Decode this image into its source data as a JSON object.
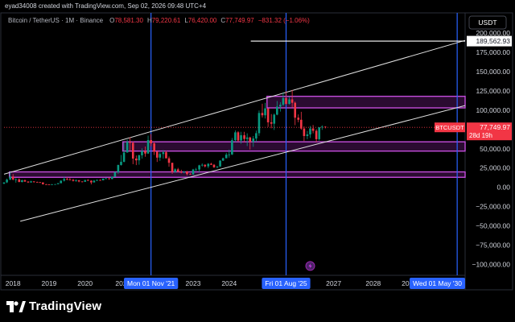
{
  "attribution": "eyad34008 created with TradingView.com, Sep 02, 2026 09:48 UTC+4",
  "header": {
    "symbol": "Bitcoin / TetherUS · 1M · Binance",
    "ohlc": [
      {
        "label": "O",
        "value": "78,581.30"
      },
      {
        "label": "H",
        "value": "79,220.61"
      },
      {
        "label": "L",
        "value": "76,420.00"
      },
      {
        "label": "C",
        "value": "77,749.97"
      }
    ],
    "change": "−831.32 (−1.06%)"
  },
  "currency_badge": "USDT",
  "brand": {
    "name": "TradingView"
  },
  "colors": {
    "background": "#000000",
    "up": "#089981",
    "down": "#f23645",
    "zone": "#9c27b0",
    "vline": "#2962ff",
    "channel": "#e0e0e0"
  },
  "chart_data": {
    "type": "candlestick",
    "interval": "1M",
    "x_axis": {
      "range": [
        2017.75,
        2030.55
      ],
      "ticks": [
        {
          "year": 2018,
          "label": "2018"
        },
        {
          "year": 2019,
          "label": "2019"
        },
        {
          "year": 2020,
          "label": "2020"
        },
        {
          "year": 2021,
          "label": "202"
        },
        {
          "year": 2023,
          "label": "2023"
        },
        {
          "year": 2024,
          "label": "2024"
        },
        {
          "year": 2025,
          "label": "2"
        },
        {
          "year": 2026.9,
          "label": "2027"
        },
        {
          "year": 2028,
          "label": "2028"
        },
        {
          "year": 2029,
          "label": "2029"
        }
      ],
      "highlighted_labels": [
        {
          "date": 2021.83,
          "label": "Mon 01 Nov '21"
        },
        {
          "date": 2025.58,
          "label": "Fri 01 Aug '25"
        },
        {
          "date": 2030.33,
          "label": "Wed 01 May '30"
        }
      ]
    },
    "y_axis": {
      "range": [
        -112000,
        222000
      ],
      "ticks": [
        {
          "value": 200000,
          "label": "200,000.00"
        },
        {
          "value": 175000,
          "label": "175,000.00"
        },
        {
          "value": 150000,
          "label": "150,000.00"
        },
        {
          "value": 125000,
          "label": "125,000.00"
        },
        {
          "value": 100000,
          "label": "100,000.00"
        },
        {
          "value": 75000,
          "label": "75,000.00"
        },
        {
          "value": 50000,
          "label": "50,000.00"
        },
        {
          "value": 25000,
          "label": "25,000.00"
        },
        {
          "value": 0,
          "label": "0.00"
        },
        {
          "value": -25000,
          "label": "−25,000.00"
        },
        {
          "value": -50000,
          "label": "−50,000.00"
        },
        {
          "value": -75000,
          "label": "−75,000.00"
        },
        {
          "value": -100000,
          "label": "−100,000.00"
        }
      ],
      "price_label": {
        "value": 77749.97,
        "symbol": "BTCUSDT",
        "price": "77,749.97",
        "countdown": "28d 19h"
      },
      "target_label": {
        "value": 189562.93,
        "text": "189,562.93"
      }
    },
    "candles": [
      {
        "t": 2017.75,
        "o": 4700,
        "h": 6500,
        "l": 4200,
        "c": 6400
      },
      {
        "t": 2017.83,
        "o": 6400,
        "h": 11300,
        "l": 5500,
        "c": 10000
      },
      {
        "t": 2017.92,
        "o": 10000,
        "h": 19800,
        "l": 9300,
        "c": 14000
      },
      {
        "t": 2018.0,
        "o": 14000,
        "h": 17200,
        "l": 9000,
        "c": 10200
      },
      {
        "t": 2018.08,
        "o": 10200,
        "h": 11800,
        "l": 6000,
        "c": 10300
      },
      {
        "t": 2018.17,
        "o": 10300,
        "h": 11700,
        "l": 6600,
        "c": 6900
      },
      {
        "t": 2018.25,
        "o": 6900,
        "h": 9800,
        "l": 6400,
        "c": 9200
      },
      {
        "t": 2018.33,
        "o": 9200,
        "h": 10000,
        "l": 7000,
        "c": 7500
      },
      {
        "t": 2018.42,
        "o": 7500,
        "h": 7800,
        "l": 5700,
        "c": 6400
      },
      {
        "t": 2018.5,
        "o": 6400,
        "h": 8500,
        "l": 6000,
        "c": 7700
      },
      {
        "t": 2018.58,
        "o": 7700,
        "h": 7800,
        "l": 5900,
        "c": 7000
      },
      {
        "t": 2018.67,
        "o": 7000,
        "h": 7400,
        "l": 6100,
        "c": 6600
      },
      {
        "t": 2018.75,
        "o": 6600,
        "h": 7000,
        "l": 6200,
        "c": 6300
      },
      {
        "t": 2018.83,
        "o": 6300,
        "h": 6500,
        "l": 3600,
        "c": 4000
      },
      {
        "t": 2018.92,
        "o": 4000,
        "h": 4300,
        "l": 3100,
        "c": 3700
      },
      {
        "t": 2019.0,
        "o": 3700,
        "h": 4100,
        "l": 3300,
        "c": 3400
      },
      {
        "t": 2019.08,
        "o": 3400,
        "h": 4200,
        "l": 3300,
        "c": 3800
      },
      {
        "t": 2019.17,
        "o": 3800,
        "h": 4100,
        "l": 3700,
        "c": 4100
      },
      {
        "t": 2019.25,
        "o": 4100,
        "h": 5600,
        "l": 4000,
        "c": 5300
      },
      {
        "t": 2019.33,
        "o": 5300,
        "h": 9000,
        "l": 5300,
        "c": 8600
      },
      {
        "t": 2019.42,
        "o": 8600,
        "h": 13900,
        "l": 7500,
        "c": 10800
      },
      {
        "t": 2019.5,
        "o": 10800,
        "h": 13200,
        "l": 9100,
        "c": 10100
      },
      {
        "t": 2019.58,
        "o": 10100,
        "h": 12300,
        "l": 9300,
        "c": 9600
      },
      {
        "t": 2019.67,
        "o": 9600,
        "h": 10900,
        "l": 7700,
        "c": 8300
      },
      {
        "t": 2019.75,
        "o": 8300,
        "h": 10400,
        "l": 7300,
        "c": 9100
      },
      {
        "t": 2019.83,
        "o": 9100,
        "h": 9500,
        "l": 6500,
        "c": 7600
      },
      {
        "t": 2019.92,
        "o": 7600,
        "h": 7800,
        "l": 6400,
        "c": 7200
      },
      {
        "t": 2020.0,
        "o": 7200,
        "h": 9600,
        "l": 6900,
        "c": 9400
      },
      {
        "t": 2020.08,
        "o": 9400,
        "h": 10500,
        "l": 8400,
        "c": 8500
      },
      {
        "t": 2020.17,
        "o": 8500,
        "h": 9200,
        "l": 3800,
        "c": 6400
      },
      {
        "t": 2020.25,
        "o": 6400,
        "h": 9500,
        "l": 6200,
        "c": 8600
      },
      {
        "t": 2020.33,
        "o": 8600,
        "h": 10100,
        "l": 8100,
        "c": 9400
      },
      {
        "t": 2020.42,
        "o": 9400,
        "h": 10400,
        "l": 8900,
        "c": 9100
      },
      {
        "t": 2020.5,
        "o": 9100,
        "h": 11400,
        "l": 8900,
        "c": 11300
      },
      {
        "t": 2020.58,
        "o": 11300,
        "h": 12500,
        "l": 11000,
        "c": 11600
      },
      {
        "t": 2020.67,
        "o": 11600,
        "h": 12000,
        "l": 9800,
        "c": 10800
      },
      {
        "t": 2020.75,
        "o": 10800,
        "h": 14100,
        "l": 10400,
        "c": 13800
      },
      {
        "t": 2020.83,
        "o": 13800,
        "h": 19900,
        "l": 13200,
        "c": 19700
      },
      {
        "t": 2020.92,
        "o": 19700,
        "h": 29300,
        "l": 17600,
        "c": 29000
      },
      {
        "t": 2021.0,
        "o": 29000,
        "h": 41900,
        "l": 28100,
        "c": 33100
      },
      {
        "t": 2021.08,
        "o": 33100,
        "h": 58300,
        "l": 32300,
        "c": 45100
      },
      {
        "t": 2021.17,
        "o": 45100,
        "h": 61800,
        "l": 45000,
        "c": 58800
      },
      {
        "t": 2021.25,
        "o": 58800,
        "h": 64900,
        "l": 46900,
        "c": 57700
      },
      {
        "t": 2021.33,
        "o": 57700,
        "h": 59600,
        "l": 30000,
        "c": 37300
      },
      {
        "t": 2021.42,
        "o": 37300,
        "h": 41300,
        "l": 28800,
        "c": 35000
      },
      {
        "t": 2021.5,
        "o": 35000,
        "h": 42400,
        "l": 29300,
        "c": 41500
      },
      {
        "t": 2021.58,
        "o": 41500,
        "h": 50500,
        "l": 37300,
        "c": 47100
      },
      {
        "t": 2021.67,
        "o": 47100,
        "h": 52900,
        "l": 39600,
        "c": 43800
      },
      {
        "t": 2021.75,
        "o": 43800,
        "h": 67000,
        "l": 43300,
        "c": 61300
      },
      {
        "t": 2021.83,
        "o": 61300,
        "h": 69000,
        "l": 53200,
        "c": 57000
      },
      {
        "t": 2021.92,
        "o": 57000,
        "h": 59000,
        "l": 42000,
        "c": 46200
      },
      {
        "t": 2022.0,
        "o": 46200,
        "h": 47900,
        "l": 32900,
        "c": 38500
      },
      {
        "t": 2022.08,
        "o": 38500,
        "h": 45800,
        "l": 34300,
        "c": 43200
      },
      {
        "t": 2022.17,
        "o": 43200,
        "h": 48200,
        "l": 37200,
        "c": 45500
      },
      {
        "t": 2022.25,
        "o": 45500,
        "h": 47400,
        "l": 37600,
        "c": 37600
      },
      {
        "t": 2022.33,
        "o": 37600,
        "h": 40000,
        "l": 26700,
        "c": 31800
      },
      {
        "t": 2022.42,
        "o": 31800,
        "h": 31900,
        "l": 17600,
        "c": 19900
      },
      {
        "t": 2022.5,
        "o": 19900,
        "h": 24700,
        "l": 18800,
        "c": 23300
      },
      {
        "t": 2022.58,
        "o": 23300,
        "h": 25200,
        "l": 19500,
        "c": 20000
      },
      {
        "t": 2022.67,
        "o": 20000,
        "h": 22800,
        "l": 18100,
        "c": 19400
      },
      {
        "t": 2022.75,
        "o": 19400,
        "h": 20900,
        "l": 18200,
        "c": 20500
      },
      {
        "t": 2022.83,
        "o": 20500,
        "h": 21400,
        "l": 15500,
        "c": 17200
      },
      {
        "t": 2022.92,
        "o": 17200,
        "h": 18400,
        "l": 16300,
        "c": 16500
      },
      {
        "t": 2023.0,
        "o": 16500,
        "h": 23900,
        "l": 16500,
        "c": 23100
      },
      {
        "t": 2023.08,
        "o": 23100,
        "h": 25200,
        "l": 21400,
        "c": 23100
      },
      {
        "t": 2023.17,
        "o": 23100,
        "h": 29200,
        "l": 19500,
        "c": 28500
      },
      {
        "t": 2023.25,
        "o": 28500,
        "h": 31000,
        "l": 26900,
        "c": 29200
      },
      {
        "t": 2023.33,
        "o": 29200,
        "h": 29800,
        "l": 25800,
        "c": 27200
      },
      {
        "t": 2023.42,
        "o": 27200,
        "h": 31400,
        "l": 24800,
        "c": 30500
      },
      {
        "t": 2023.5,
        "o": 30500,
        "h": 31800,
        "l": 28900,
        "c": 29200
      },
      {
        "t": 2023.58,
        "o": 29200,
        "h": 30200,
        "l": 25200,
        "c": 26000
      },
      {
        "t": 2023.67,
        "o": 26000,
        "h": 27500,
        "l": 24900,
        "c": 27000
      },
      {
        "t": 2023.75,
        "o": 27000,
        "h": 35200,
        "l": 26500,
        "c": 34600
      },
      {
        "t": 2023.83,
        "o": 34600,
        "h": 38500,
        "l": 34100,
        "c": 37700
      },
      {
        "t": 2023.92,
        "o": 37700,
        "h": 44700,
        "l": 37600,
        "c": 42300
      },
      {
        "t": 2024.0,
        "o": 42300,
        "h": 48900,
        "l": 38500,
        "c": 42600
      },
      {
        "t": 2024.08,
        "o": 42600,
        "h": 64000,
        "l": 41900,
        "c": 61100
      },
      {
        "t": 2024.17,
        "o": 61100,
        "h": 73800,
        "l": 59000,
        "c": 71300
      },
      {
        "t": 2024.25,
        "o": 71300,
        "h": 72800,
        "l": 59200,
        "c": 60700
      },
      {
        "t": 2024.33,
        "o": 60700,
        "h": 71900,
        "l": 56600,
        "c": 67500
      },
      {
        "t": 2024.42,
        "o": 67500,
        "h": 71900,
        "l": 58400,
        "c": 62700
      },
      {
        "t": 2024.5,
        "o": 62700,
        "h": 70000,
        "l": 53500,
        "c": 64600
      },
      {
        "t": 2024.58,
        "o": 64600,
        "h": 65600,
        "l": 49000,
        "c": 58900
      },
      {
        "t": 2024.67,
        "o": 58900,
        "h": 66500,
        "l": 52500,
        "c": 63300
      },
      {
        "t": 2024.75,
        "o": 63300,
        "h": 73600,
        "l": 58900,
        "c": 70200
      },
      {
        "t": 2024.83,
        "o": 70200,
        "h": 99600,
        "l": 66800,
        "c": 96400
      },
      {
        "t": 2024.92,
        "o": 96400,
        "h": 108300,
        "l": 90500,
        "c": 93400
      },
      {
        "t": 2025.0,
        "o": 93400,
        "h": 109600,
        "l": 89200,
        "c": 102400
      },
      {
        "t": 2025.08,
        "o": 102400,
        "h": 102500,
        "l": 78300,
        "c": 84300
      },
      {
        "t": 2025.17,
        "o": 84300,
        "h": 95000,
        "l": 76600,
        "c": 82500
      },
      {
        "t": 2025.25,
        "o": 82500,
        "h": 95700,
        "l": 74400,
        "c": 94200
      },
      {
        "t": 2025.33,
        "o": 94200,
        "h": 111900,
        "l": 93400,
        "c": 104600
      },
      {
        "t": 2025.42,
        "o": 104600,
        "h": 110400,
        "l": 98200,
        "c": 107100
      },
      {
        "t": 2025.5,
        "o": 107100,
        "h": 123200,
        "l": 105300,
        "c": 115700
      },
      {
        "t": 2025.58,
        "o": 115700,
        "h": 124500,
        "l": 107300,
        "c": 108200
      },
      {
        "t": 2025.67,
        "o": 108200,
        "h": 117900,
        "l": 107300,
        "c": 114000
      },
      {
        "t": 2025.75,
        "o": 114000,
        "h": 126200,
        "l": 103500,
        "c": 109600
      },
      {
        "t": 2025.83,
        "o": 109600,
        "h": 111200,
        "l": 80600,
        "c": 90300
      },
      {
        "t": 2025.92,
        "o": 90300,
        "h": 94500,
        "l": 84400,
        "c": 87600
      },
      {
        "t": 2026.0,
        "o": 87600,
        "h": 97900,
        "l": 74600,
        "c": 76200
      },
      {
        "t": 2026.08,
        "o": 76200,
        "h": 79000,
        "l": 60000,
        "c": 66500
      },
      {
        "t": 2026.17,
        "o": 66500,
        "h": 73000,
        "l": 62500,
        "c": 68600
      },
      {
        "t": 2026.25,
        "o": 68600,
        "h": 79500,
        "l": 64000,
        "c": 76300
      },
      {
        "t": 2026.33,
        "o": 76300,
        "h": 80800,
        "l": 70000,
        "c": 73300
      },
      {
        "t": 2026.42,
        "o": 73300,
        "h": 75500,
        "l": 58500,
        "c": 62400
      },
      {
        "t": 2026.5,
        "o": 62400,
        "h": 78000,
        "l": 60500,
        "c": 77800
      },
      {
        "t": 2026.58,
        "o": 77800,
        "h": 80400,
        "l": 74500,
        "c": 78580
      },
      {
        "t": 2026.67,
        "o": 78580,
        "h": 79220,
        "l": 76420,
        "c": 77750
      }
    ],
    "zones": [
      {
        "x0": 2017.9,
        "x1": 2030.55,
        "y_low": 13000,
        "y_high": 20000
      },
      {
        "x0": 2021.05,
        "x1": 2030.55,
        "y_low": 47000,
        "y_high": 59000
      },
      {
        "x0": 2025.05,
        "x1": 2030.55,
        "y_low": 103000,
        "y_high": 118000
      }
    ],
    "channel_lines": [
      {
        "x0": 2017.75,
        "y0": 17000,
        "x1": 2030.55,
        "y1": 190500
      },
      {
        "x0": 2018.2,
        "y0": -44000,
        "x1": 2030.55,
        "y1": 106000
      }
    ],
    "target_line": {
      "x0": 2024.6,
      "x1": 2030.55,
      "value": 189562.93
    },
    "vertical_lines": [
      2021.83,
      2025.58,
      2030.33
    ],
    "event_marker": {
      "t": 2026.25,
      "value": -102000
    }
  }
}
